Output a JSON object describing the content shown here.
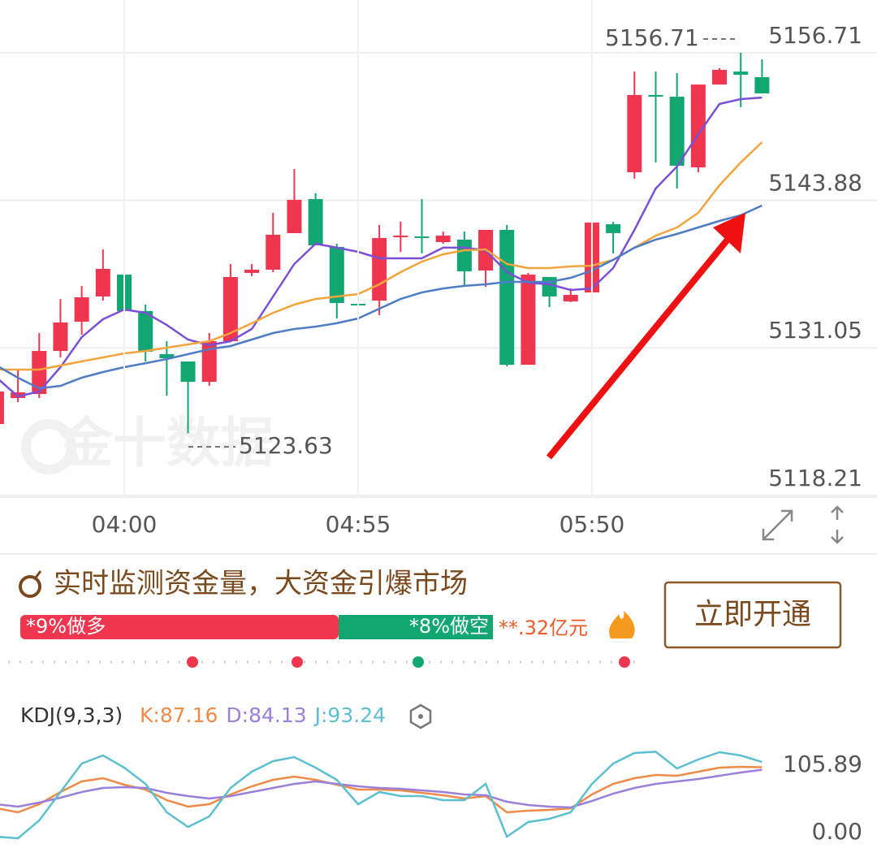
{
  "chart_data": [
    {
      "type": "candlestick",
      "watermark": "金十数据",
      "annotations": [
        "5156.71",
        "5123.63"
      ],
      "categories": [
        null,
        null,
        null,
        null,
        null,
        null,
        "04:00",
        null,
        null,
        null,
        null,
        null,
        null,
        null,
        null,
        null,
        null,
        "04:55",
        null,
        null,
        null,
        null,
        null,
        null,
        null,
        null,
        null,
        null,
        "05:50",
        null,
        null,
        null,
        null,
        null,
        null,
        null,
        null
      ],
      "open": [
        5124.43,
        5126.69,
        5127.04,
        5130.78,
        5133.33,
        5135.52,
        5137.42,
        5134.25,
        5130.5,
        5129.87,
        5128.1,
        5131.63,
        5137.57,
        5137.85,
        5141.03,
        5143.99,
        5139.83,
        5134.88,
        5135.16,
        5140.67,
        5140.74,
        5140.25,
        5140.46,
        5137.78,
        5141.31,
        5129.58,
        5137.21,
        5135.09,
        5135.87,
        5141.8,
        5146.32,
        5153.04,
        5152.89,
        5146.75,
        5153.95,
        5155.08,
        5154.59
      ],
      "high": [
        5127.25,
        5129.16,
        5132.34,
        5135.3,
        5136.44,
        5139.61,
        5138.7,
        5134.81,
        5131.63,
        5129.87,
        5132.34,
        5138.34,
        5138.34,
        5142.79,
        5146.61,
        5144.49,
        5140.11,
        5135.87,
        5141.73,
        5142.02,
        5143.99,
        5141.17,
        5141.17,
        5141.31,
        5141.73,
        5137.57,
        5137.21,
        5136.22,
        5142.23,
        5142.02,
        5155.08,
        5155.08,
        5154.94,
        5153.95,
        5155.37,
        5156.71,
        5156.14
      ],
      "low": [
        5124.43,
        5126.33,
        5126.69,
        5130.22,
        5132.2,
        5135.16,
        5133.75,
        5129.87,
        5126.9,
        5123.63,
        5127.75,
        5131.63,
        5137.28,
        5137.64,
        5141.03,
        5139.97,
        5133.61,
        5133.04,
        5133.89,
        5139.4,
        5139.26,
        5140.11,
        5136.36,
        5136.36,
        5129.44,
        5129.58,
        5134.6,
        5135.02,
        5134.95,
        5139.26,
        5145.76,
        5147.17,
        5144.91,
        5146.32,
        5153.95,
        5151.98,
        5153.18
      ],
      "close": [
        5127.25,
        5127.18,
        5130.78,
        5133.26,
        5135.45,
        5137.92,
        5134.25,
        5130.71,
        5130.15,
        5128.1,
        5131.63,
        5137.21,
        5137.85,
        5140.89,
        5143.92,
        5139.97,
        5134.95,
        5134.74,
        5140.6,
        5140.81,
        5140.6,
        5140.81,
        5137.71,
        5141.31,
        5129.58,
        5137.42,
        5135.52,
        5135.66,
        5141.95,
        5141.03,
        5153.04,
        5152.89,
        5146.89,
        5153.95,
        5155.23,
        5154.8,
        5153.18
      ],
      "up_color": "#f0354f",
      "down_color": "#12a673",
      "series": [
        {
          "color": "#7b4fd6",
          "values": [
            5128.45,
            5126.83,
            5127.25,
            5129.37,
            5131.98,
            5133.54,
            5134.39,
            5134.1,
            5133.04,
            5131.77,
            5131.28,
            5131.63,
            5132.69,
            5135.52,
            5138.34,
            5140.11,
            5139.76,
            5139.4,
            5138.84,
            5138.84,
            5138.84,
            5139.76,
            5139.76,
            5139.54,
            5137.64,
            5136.72,
            5136.58,
            5136.08,
            5136.22,
            5137.99,
            5141.31,
            5144.91,
            5146.82,
            5149.64,
            5152.26,
            5152.68,
            5152.82
          ]
        },
        {
          "color": "#f4a43c",
          "values": [
            5129.16,
            5129.16,
            5129.16,
            5129.51,
            5129.87,
            5130.22,
            5130.57,
            5130.78,
            5131.07,
            5131.35,
            5131.63,
            5132.34,
            5133.19,
            5134.1,
            5134.81,
            5135.3,
            5135.52,
            5135.73,
            5136.58,
            5137.64,
            5138.55,
            5139.19,
            5139.54,
            5139.61,
            5138.34,
            5137.99,
            5137.99,
            5138.13,
            5138.2,
            5138.7,
            5139.76,
            5140.81,
            5141.52,
            5142.79,
            5145.19,
            5147.17,
            5148.94
          ]
        },
        {
          "color": "#4f7cc4",
          "values": [
            5129.51,
            5128.45,
            5127.53,
            5127.75,
            5128.45,
            5128.95,
            5129.37,
            5129.72,
            5130.08,
            5130.5,
            5130.93,
            5131.21,
            5131.77,
            5132.34,
            5132.69,
            5132.9,
            5133.19,
            5133.61,
            5134.46,
            5135.3,
            5135.87,
            5136.22,
            5136.44,
            5136.58,
            5136.79,
            5136.79,
            5136.79,
            5137.14,
            5137.78,
            5138.7,
            5139.76,
            5140.46,
            5140.96,
            5141.52,
            5142.09,
            5142.58,
            5143.43
          ]
        }
      ],
      "ylim": [
        5118.21,
        5156.71
      ],
      "yticks": [
        5118.21,
        5131.05,
        5143.88,
        5156.71
      ],
      "grid": true
    },
    {
      "type": "line",
      "title": "KDJ(9,3,3)",
      "series": [
        {
          "name": "K:87.16",
          "color": "#f08a48",
          "values": [
            38.5,
            33.69,
            43.32,
            57.76,
            70.27,
            74.12,
            66.42,
            60.64,
            48.13,
            40.43,
            43.32,
            54.87,
            64.49,
            72.2,
            76.05,
            72.2,
            66.42,
            60.64,
            60.64,
            59.68,
            56.79,
            53.91,
            50.06,
            52.94,
            33.69,
            35.62,
            36.58,
            38.5,
            54.87,
            67.38,
            74.12,
            77.97,
            77.01,
            81.82,
            86.63,
            87.6,
            87.16
          ]
        },
        {
          "name": "D:84.13",
          "color": "#9b7fd9",
          "values": [
            43.32,
            40.43,
            45.24,
            51.02,
            57.76,
            62.57,
            63.53,
            62.57,
            56.79,
            52.94,
            50.06,
            52.94,
            57.76,
            62.57,
            67.38,
            70.27,
            67.38,
            64.49,
            62.57,
            61.61,
            59.68,
            57.76,
            54.87,
            53.91,
            46.2,
            42.36,
            40.43,
            39.47,
            47.17,
            55.83,
            62.57,
            67.38,
            70.27,
            73.16,
            77.01,
            80.86,
            84.13
          ]
        },
        {
          "name": "J:93.24",
          "color": "#5cbfcf",
          "values": [
            4.81,
            2.89,
            24.07,
            57.76,
            91.45,
            101.07,
            86.63,
            67.38,
            33.69,
            16.36,
            28.88,
            62.57,
            81.82,
            94.33,
            99.15,
            86.63,
            72.2,
            43.32,
            57.76,
            52.94,
            52.94,
            48.13,
            48.13,
            67.38,
            4.81,
            22.14,
            25.99,
            33.69,
            67.38,
            91.45,
            103.96,
            105.5,
            85.67,
            96.26,
            104.92,
            101.07,
            93.24
          ]
        }
      ],
      "ylim": [
        0,
        105.89
      ],
      "yticks": [
        {
          "value": 0,
          "label": "0.00"
        },
        105.89
      ],
      "grid": false
    }
  ],
  "banner": {
    "title": "实时监测资金量，大资金引爆市场",
    "long_label": "*9%做多",
    "short_label": "*8%做空",
    "amount": "**.32亿元",
    "button": "立即开通"
  }
}
